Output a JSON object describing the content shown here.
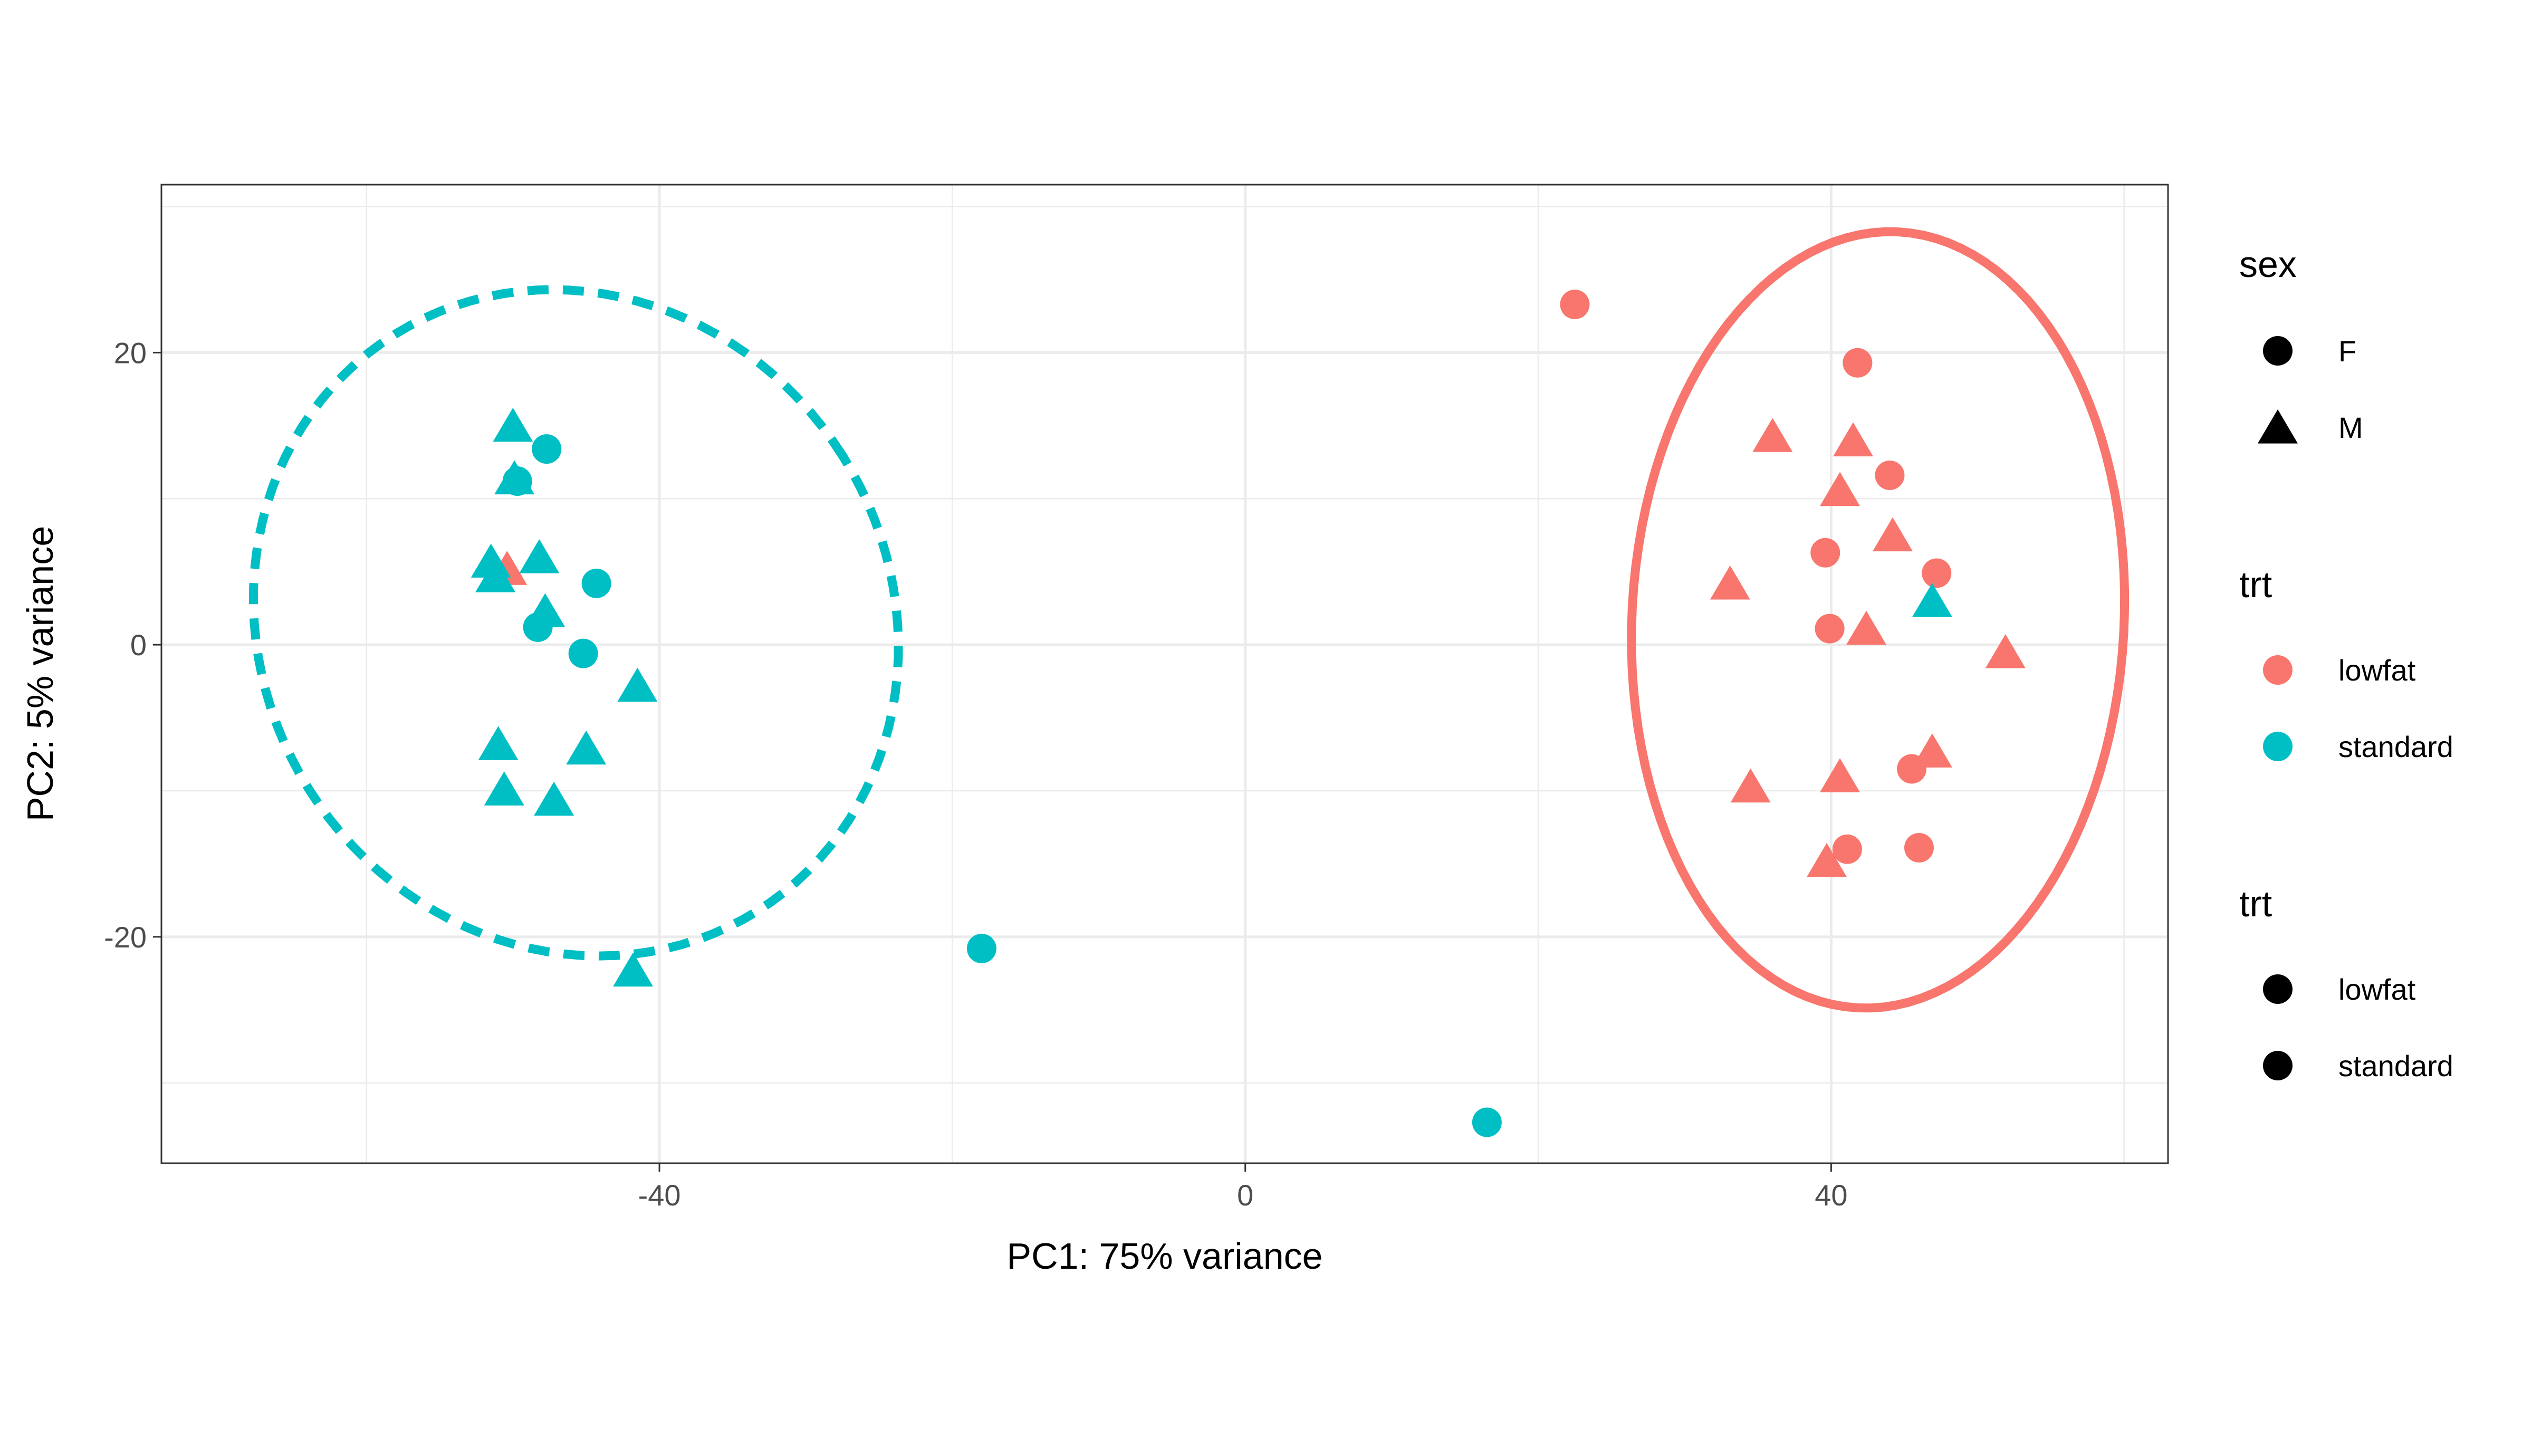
{
  "chart_data": {
    "type": "scatter",
    "title": "",
    "xlabel": "PC1: 75% variance",
    "ylabel": "PC2: 5% variance",
    "xlim": [
      -74,
      63
    ],
    "ylim": [
      -35.5,
      31.5
    ],
    "x_ticks": [
      -40,
      0,
      40
    ],
    "y_ticks": [
      -20,
      0,
      20
    ],
    "x_tick_labels": [
      "-40",
      "0",
      "40"
    ],
    "y_tick_labels": [
      "-20",
      "0",
      "20"
    ],
    "x_minor": [
      -60,
      -20,
      20,
      60
    ],
    "y_minor": [
      -30,
      -10,
      10,
      30
    ],
    "grid": true,
    "legend_position": "right",
    "colors": {
      "lowfat": "#F8766D",
      "standard": "#00BFC4"
    },
    "legends": [
      {
        "title": "sex",
        "kind": "shape",
        "items": [
          {
            "label": "F",
            "shape": "circle"
          },
          {
            "label": "M",
            "shape": "triangle"
          }
        ]
      },
      {
        "title": "trt",
        "kind": "color",
        "items": [
          {
            "label": "lowfat",
            "group": "lowfat"
          },
          {
            "label": "standard",
            "group": "standard"
          }
        ]
      },
      {
        "title": "trt",
        "kind": "linetype",
        "items": [
          {
            "label": "lowfat",
            "group": "lowfat"
          },
          {
            "label": "standard",
            "group": "standard"
          }
        ]
      }
    ],
    "ellipses": [
      {
        "group": "standard",
        "linetype": "dashed",
        "center": [
          -45.7,
          1.5
        ],
        "rx": 21.5,
        "ry": 23.3,
        "angle": 32
      },
      {
        "group": "lowfat",
        "linetype": "solid",
        "center": [
          43.2,
          1.7
        ],
        "rx": 16.8,
        "ry": 26.6,
        "angle": -3
      }
    ],
    "series": [
      {
        "name": "lowfat",
        "points": [
          {
            "x": 22.5,
            "y": 23.3,
            "sex": "F"
          },
          {
            "x": 41.8,
            "y": 19.3,
            "sex": "F"
          },
          {
            "x": 36.0,
            "y": 14.3,
            "sex": "M"
          },
          {
            "x": 41.5,
            "y": 14.0,
            "sex": "M"
          },
          {
            "x": 44.0,
            "y": 11.6,
            "sex": "F"
          },
          {
            "x": 40.6,
            "y": 10.6,
            "sex": "M"
          },
          {
            "x": 44.2,
            "y": 7.5,
            "sex": "M"
          },
          {
            "x": 39.6,
            "y": 6.3,
            "sex": "F"
          },
          {
            "x": 47.2,
            "y": 4.9,
            "sex": "F"
          },
          {
            "x": 33.1,
            "y": 4.2,
            "sex": "M"
          },
          {
            "x": 39.9,
            "y": 1.1,
            "sex": "F"
          },
          {
            "x": 42.4,
            "y": 1.1,
            "sex": "M"
          },
          {
            "x": 51.9,
            "y": -0.5,
            "sex": "M"
          },
          {
            "x": 46.9,
            "y": -7.3,
            "sex": "M"
          },
          {
            "x": 45.5,
            "y": -8.5,
            "sex": "F"
          },
          {
            "x": 34.5,
            "y": -9.7,
            "sex": "M"
          },
          {
            "x": 40.6,
            "y": -9.0,
            "sex": "M"
          },
          {
            "x": 41.1,
            "y": -14.0,
            "sex": "F"
          },
          {
            "x": 46.0,
            "y": -13.9,
            "sex": "F"
          },
          {
            "x": 39.7,
            "y": -14.8,
            "sex": "M"
          },
          {
            "x": -50.4,
            "y": 5.2,
            "sex": "M"
          }
        ]
      },
      {
        "name": "standard",
        "points": [
          {
            "x": -50.0,
            "y": 15.0,
            "sex": "M"
          },
          {
            "x": -47.7,
            "y": 13.4,
            "sex": "F"
          },
          {
            "x": -49.9,
            "y": 11.4,
            "sex": "M"
          },
          {
            "x": -49.7,
            "y": 11.2,
            "sex": "F"
          },
          {
            "x": -51.5,
            "y": 5.7,
            "sex": "M"
          },
          {
            "x": -48.2,
            "y": 6.0,
            "sex": "M"
          },
          {
            "x": -51.2,
            "y": 4.7,
            "sex": "M"
          },
          {
            "x": -44.3,
            "y": 4.2,
            "sex": "F"
          },
          {
            "x": -47.8,
            "y": 2.3,
            "sex": "M"
          },
          {
            "x": -48.3,
            "y": 1.2,
            "sex": "F"
          },
          {
            "x": -45.2,
            "y": -0.6,
            "sex": "F"
          },
          {
            "x": -41.5,
            "y": -2.8,
            "sex": "M"
          },
          {
            "x": -51.0,
            "y": -6.8,
            "sex": "M"
          },
          {
            "x": -45.0,
            "y": -7.1,
            "sex": "M"
          },
          {
            "x": -50.6,
            "y": -9.9,
            "sex": "M"
          },
          {
            "x": -47.2,
            "y": -10.6,
            "sex": "M"
          },
          {
            "x": -41.8,
            "y": -22.3,
            "sex": "M"
          },
          {
            "x": -18.0,
            "y": -20.8,
            "sex": "F"
          },
          {
            "x": 16.5,
            "y": -32.7,
            "sex": "F"
          },
          {
            "x": 46.9,
            "y": 3.0,
            "sex": "M"
          }
        ]
      }
    ]
  }
}
